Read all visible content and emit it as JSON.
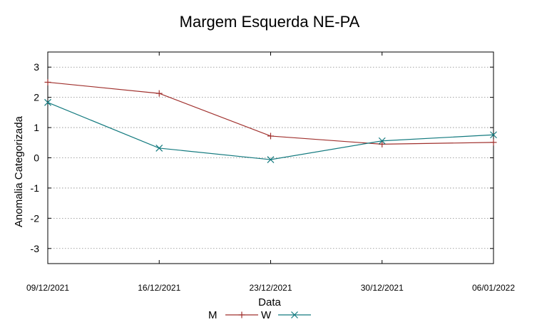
{
  "chart_data": {
    "type": "line",
    "title": "Margem Esquerda NE-PA",
    "xlabel": "Data",
    "ylabel": "Anomalia Categorizada",
    "categories": [
      "09/12/2021",
      "16/12/2021",
      "23/12/2021",
      "30/12/2021",
      "06/01/2022"
    ],
    "yticks": [
      3,
      2,
      1,
      0,
      -1,
      -2,
      -3
    ],
    "ytick_labels": [
      "3",
      "2",
      "1",
      "0",
      "-1",
      "-2",
      "-3"
    ],
    "ylim": [
      -3.5,
      3.5
    ],
    "grid": "horizontal dotted",
    "legend": "bottom",
    "series": [
      {
        "name": "M",
        "color": "#a0302d",
        "marker": "+",
        "values": [
          2.5,
          2.13,
          0.72,
          0.45,
          0.51
        ]
      },
      {
        "name": "W",
        "color": "#137a7f",
        "marker": "x",
        "values": [
          1.83,
          0.32,
          -0.06,
          0.56,
          0.76
        ]
      }
    ]
  }
}
